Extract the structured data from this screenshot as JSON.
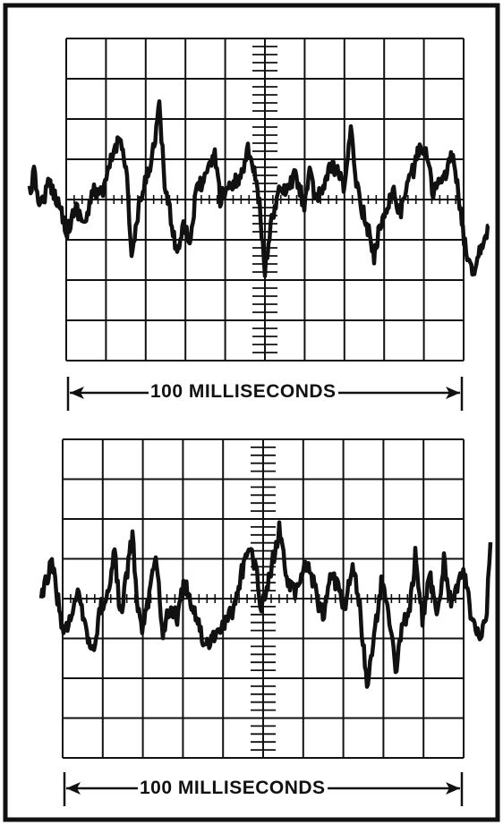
{
  "figure": {
    "panels": [
      {
        "id": "top",
        "caption": "100 MILLISECONDS"
      },
      {
        "id": "bottom",
        "caption": "100 MILLISECONDS"
      }
    ]
  },
  "colors": {
    "ink": "#111111",
    "background": "#ffffff"
  }
}
